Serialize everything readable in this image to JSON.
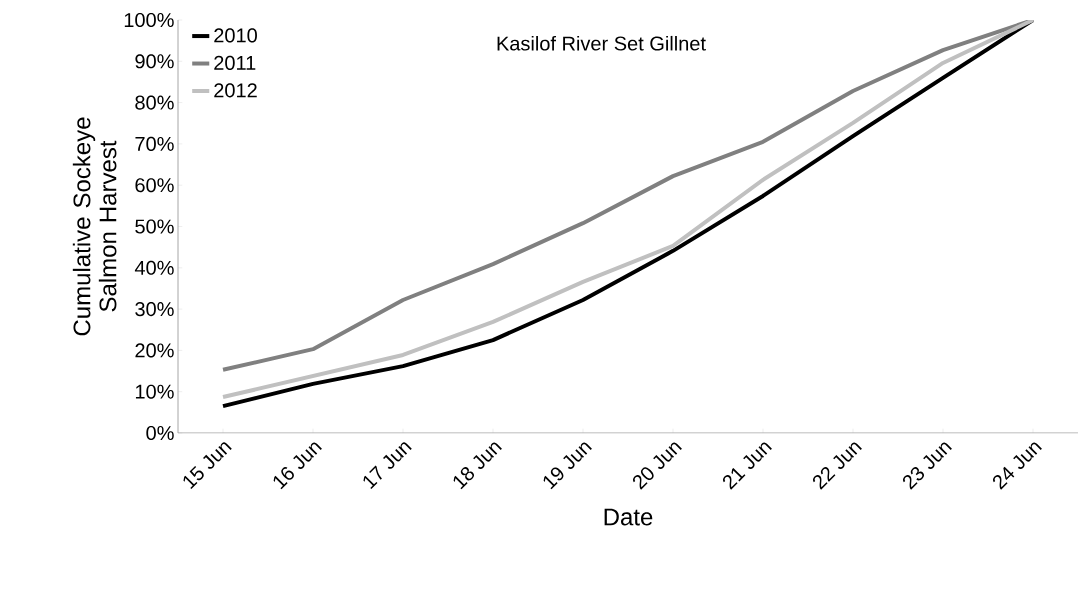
{
  "chart_data": {
    "type": "line",
    "title": "Kasilof River Set Gillnet",
    "xlabel": "Date",
    "ylabel": "Cumulative Sockeye Salmon Harvest",
    "categories": [
      "15 Jun",
      "16 Jun",
      "17 Jun",
      "18 Jun",
      "19 Jun",
      "20 Jun",
      "21 Jun",
      "22 Jun",
      "23 Jun",
      "24 Jun"
    ],
    "series": [
      {
        "name": "2010",
        "color": "#000000",
        "values": [
          6.5,
          11.9,
          16.2,
          22.5,
          32.2,
          44.1,
          57.4,
          71.9,
          86.0,
          100
        ]
      },
      {
        "name": "2011",
        "color": "#808080",
        "values": [
          15.3,
          20.3,
          32.2,
          40.9,
          50.8,
          62.2,
          70.5,
          82.8,
          92.7,
          100
        ]
      },
      {
        "name": "2012",
        "color": "#c0c0c0",
        "values": [
          8.7,
          13.8,
          18.9,
          26.9,
          36.6,
          45.3,
          61.3,
          75.1,
          89.6,
          100
        ]
      }
    ],
    "ylim": [
      0,
      100
    ],
    "yticks": [
      {
        "value": 0,
        "label": "0%"
      },
      {
        "value": 10,
        "label": "10%"
      },
      {
        "value": 20,
        "label": "20%"
      },
      {
        "value": 30,
        "label": "30%"
      },
      {
        "value": 40,
        "label": "40%"
      },
      {
        "value": 50,
        "label": "50%"
      },
      {
        "value": 60,
        "label": "60%"
      },
      {
        "value": 70,
        "label": "70%"
      },
      {
        "value": 80,
        "label": "80%"
      },
      {
        "value": 90,
        "label": "90%"
      },
      {
        "value": 100,
        "label": "100%"
      }
    ],
    "legend": "top left",
    "marker": "none",
    "line_style": "solid",
    "grid": false
  }
}
